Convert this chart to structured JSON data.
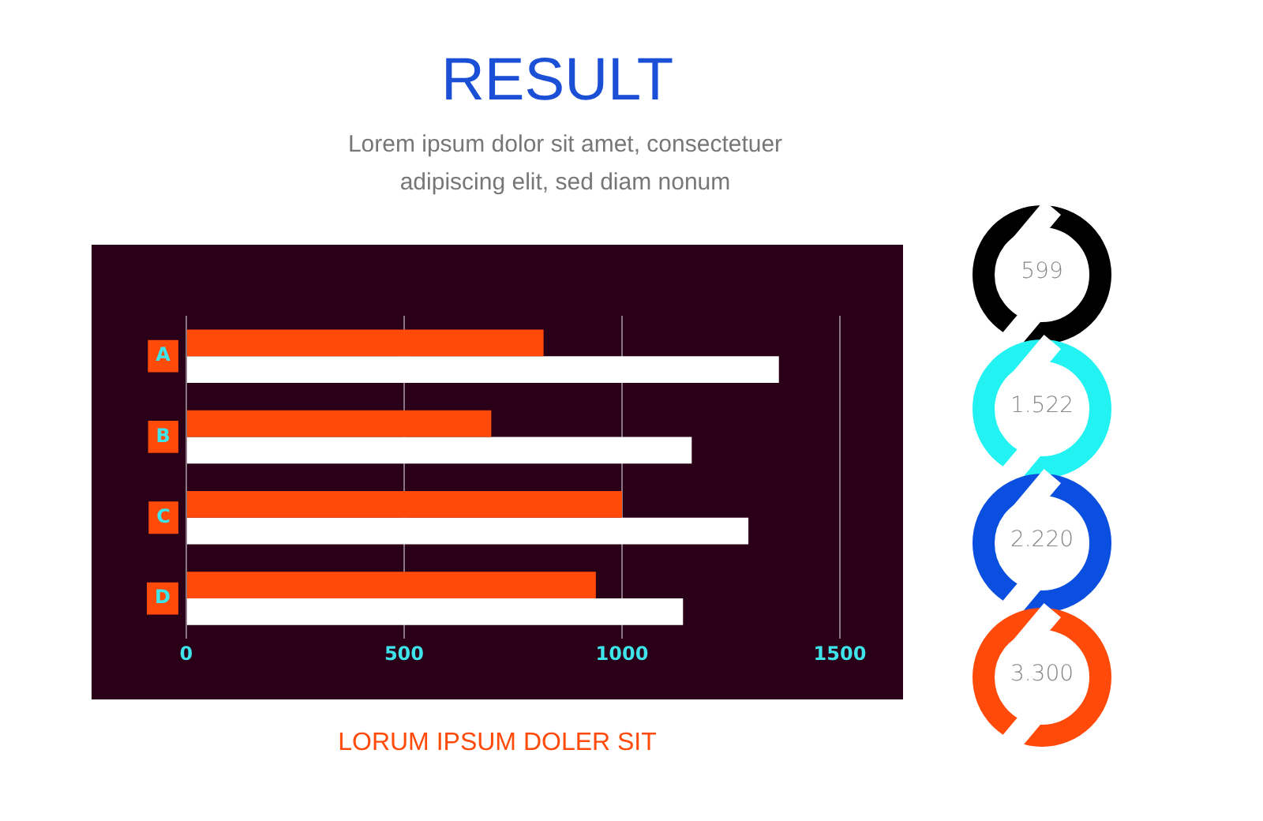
{
  "chart_data": [
    {
      "type": "bar",
      "orientation": "horizontal",
      "title": "RESULT",
      "subtitle": "Lorem ipsum dolor sit amet, consectetuer adipiscing elit, sed diam nonum",
      "xlabel": "LORUM IPSUM DOLER SIT",
      "categories": [
        "A",
        "B",
        "C",
        "D"
      ],
      "series": [
        {
          "color": "#ff4a0a",
          "values": [
            820,
            700,
            1000,
            940
          ]
        },
        {
          "color": "#ffffff",
          "values": [
            1360,
            1160,
            1290,
            1140
          ]
        }
      ],
      "xlim": [
        0,
        1500
      ],
      "xticks": [
        0,
        500,
        1000,
        1500
      ],
      "grid": "x",
      "legend": false
    },
    {
      "type": "other",
      "annotations": [
        "599",
        "1.522",
        "2.220",
        "3.300"
      ],
      "colors": [
        "#000000",
        "#22f2f2",
        "#0a4fe0",
        "#ff4a0a"
      ]
    }
  ]
}
